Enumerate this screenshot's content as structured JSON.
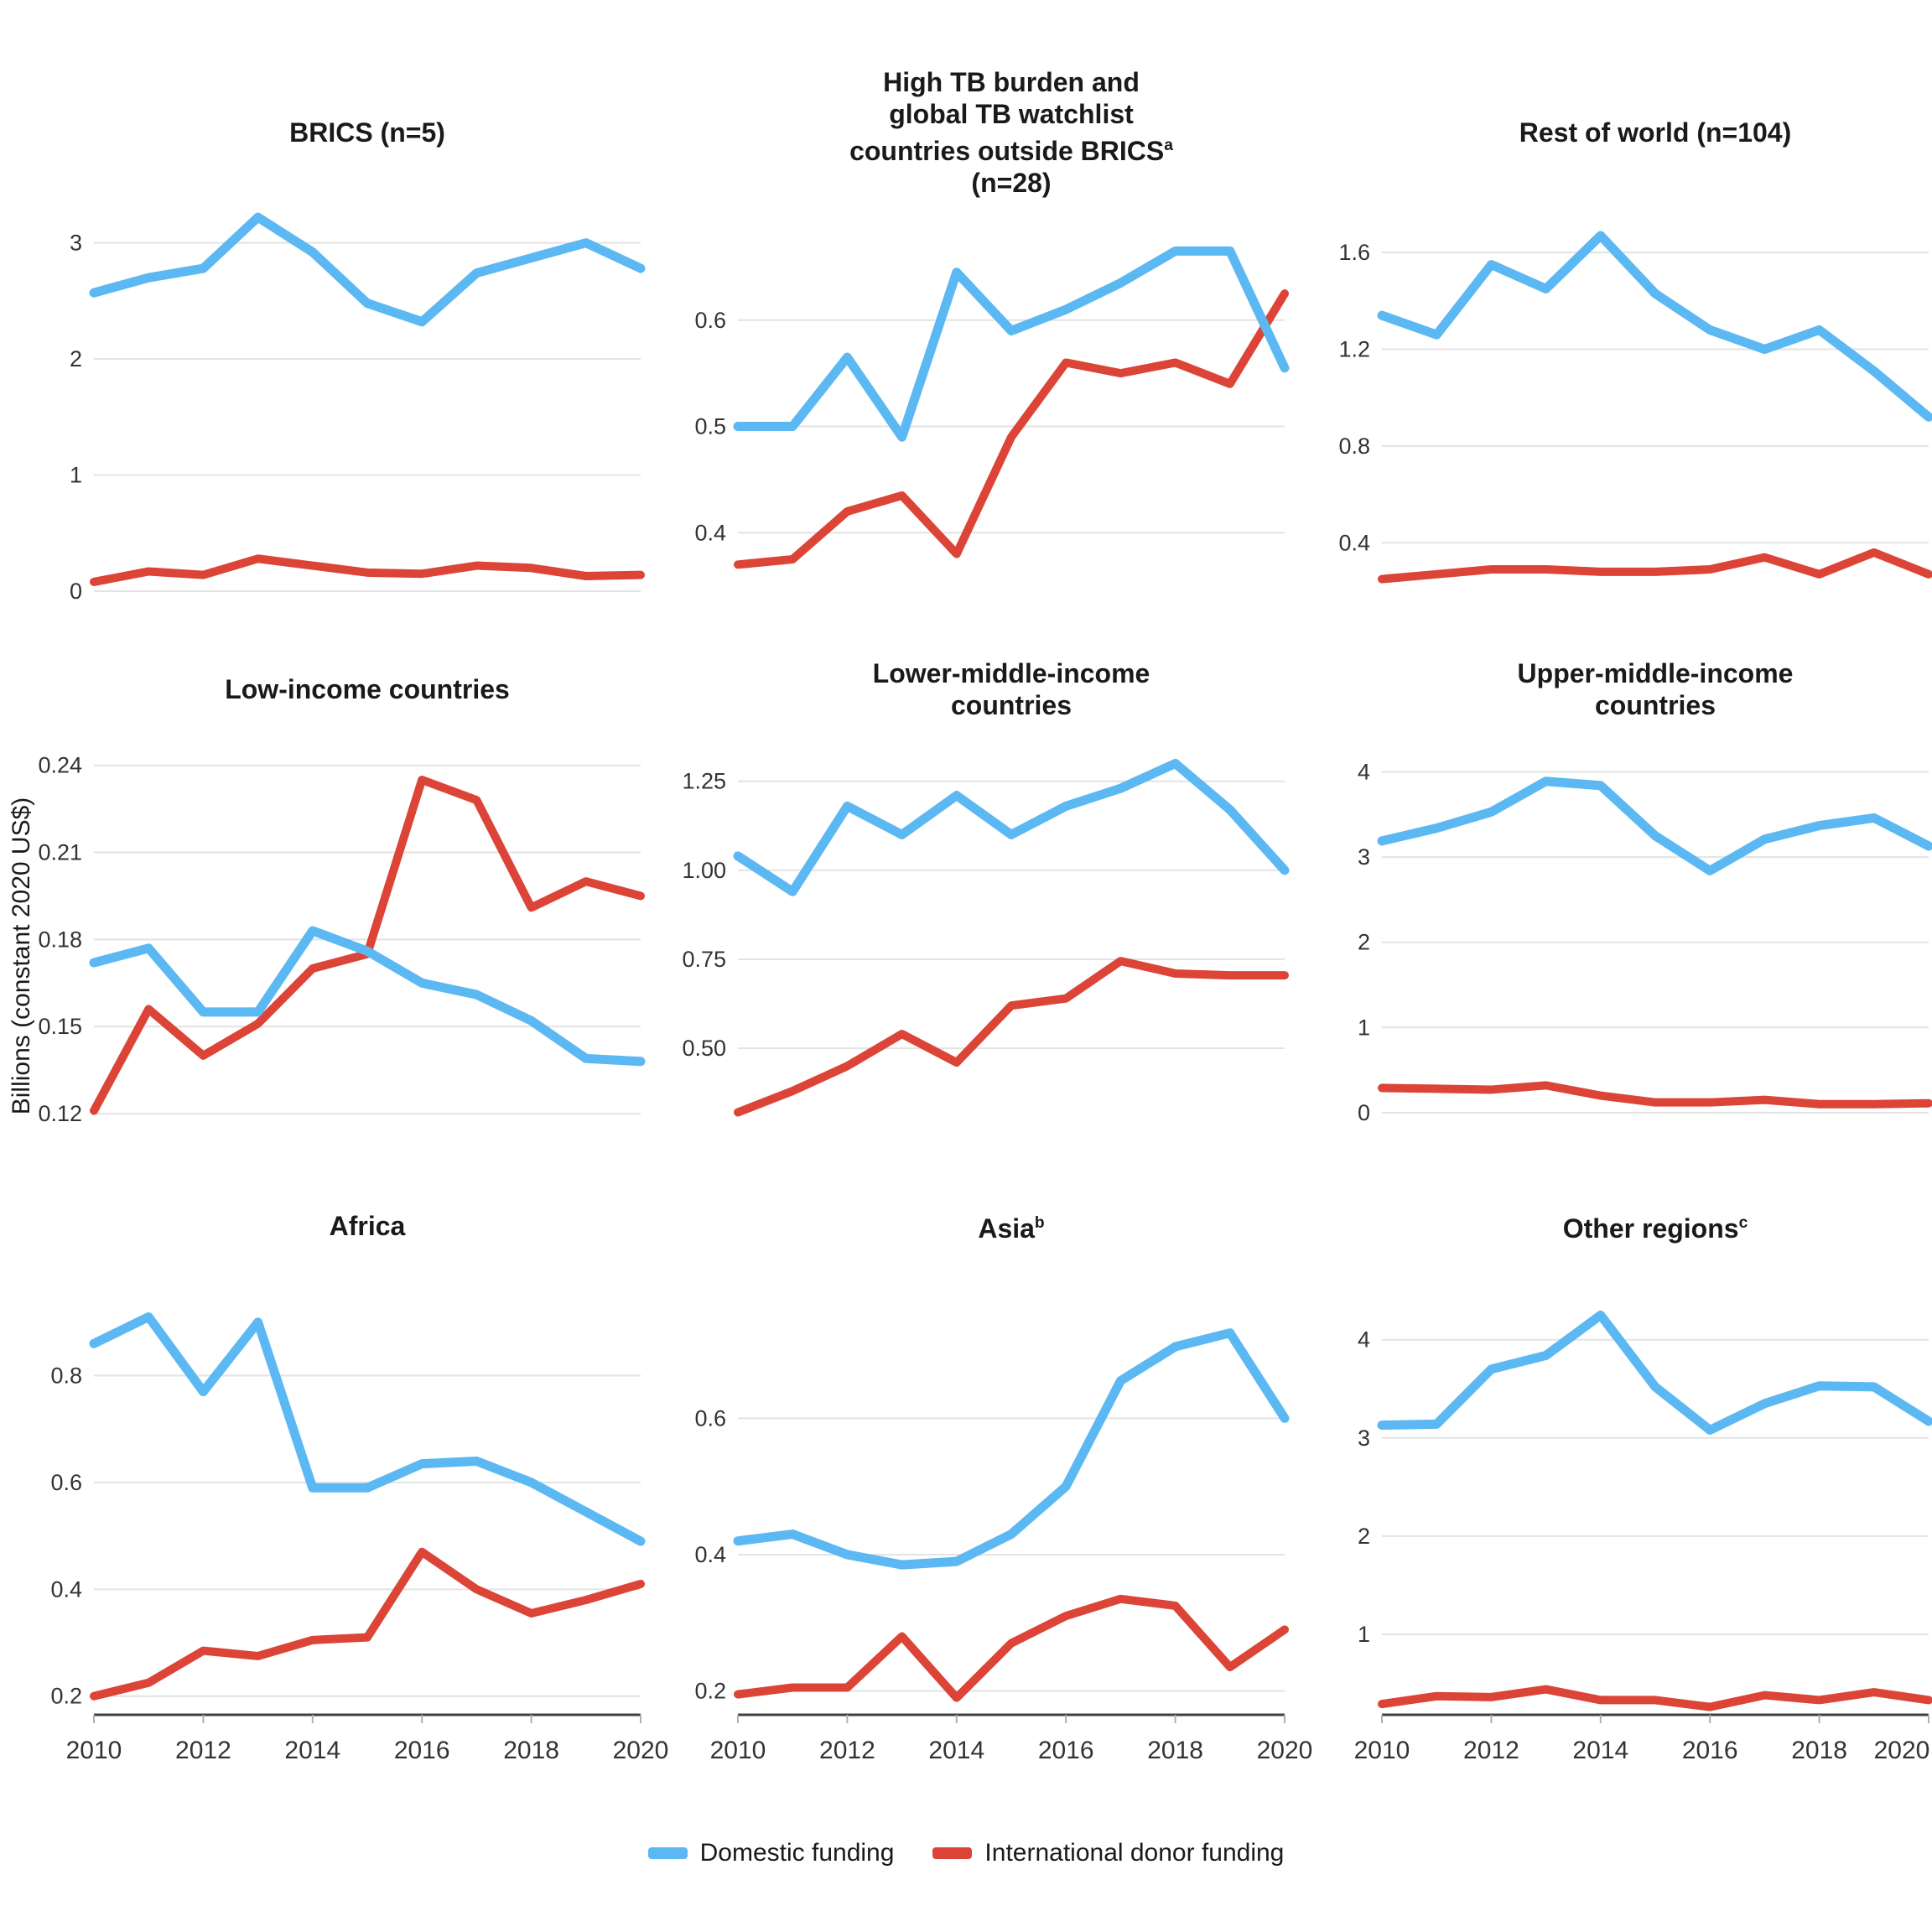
{
  "ylabel": "Billions (constant 2020 US$)",
  "legend": {
    "items": [
      {
        "id": "domestic",
        "label": "Domestic funding",
        "color": "#5CB8F2"
      },
      {
        "id": "donor",
        "label": "International donor funding",
        "color": "#DC4437"
      }
    ]
  },
  "colors": {
    "domestic_line": "#5CB8F2",
    "donor_line": "#DC4437",
    "gridline": "#E3E3E3",
    "axis_line": "#404040",
    "axis_tick": "#B0B0B0",
    "title_text": "#1A1A1A",
    "tick_text": "#333333"
  },
  "chart_data": {
    "type": "line",
    "x": [
      2010,
      2011,
      2012,
      2013,
      2014,
      2015,
      2016,
      2017,
      2018,
      2019,
      2020
    ],
    "xtick_labels": [
      "2010",
      "2012",
      "2014",
      "2016",
      "2018",
      "2020"
    ],
    "xtick_values": [
      2010,
      2012,
      2014,
      2016,
      2018,
      2020
    ],
    "series_names": [
      "Domestic funding",
      "International donor funding"
    ],
    "legend_position": "bottom",
    "grid": "horizontal-only",
    "panels": [
      {
        "id": "brics",
        "title_lines": [
          {
            "text": "BRICS (n=5)"
          }
        ],
        "ylim": [
          0,
          3.25
        ],
        "ytick_values": [
          0,
          1,
          2,
          3
        ],
        "ytick_labels": [
          "0",
          "1",
          "2",
          "3"
        ],
        "domestic": [
          2.57,
          2.7,
          2.78,
          3.22,
          2.92,
          2.48,
          2.32,
          2.74,
          2.87,
          3.0,
          2.78
        ],
        "donor": [
          0.08,
          0.17,
          0.14,
          0.28,
          0.22,
          0.16,
          0.15,
          0.22,
          0.2,
          0.13,
          0.14
        ]
      },
      {
        "id": "high-tb-watchlist",
        "title_lines": [
          {
            "text": "High TB burden and"
          },
          {
            "text": "global TB watchlist"
          },
          {
            "text": "countries outside BRICS",
            "sup": "a"
          },
          {
            "text": "(n=28)"
          }
        ],
        "ylim": [
          0.345,
          0.7
        ],
        "ytick_values": [
          0.4,
          0.5,
          0.6
        ],
        "ytick_labels": [
          "0.4",
          "0.5",
          "0.6"
        ],
        "domestic": [
          0.5,
          0.5,
          0.565,
          0.49,
          0.645,
          0.59,
          0.61,
          0.635,
          0.665,
          0.665,
          0.555
        ],
        "donor": [
          0.37,
          0.375,
          0.42,
          0.435,
          0.38,
          0.49,
          0.56,
          0.55,
          0.56,
          0.54,
          0.625
        ]
      },
      {
        "id": "rest-of-world",
        "title_lines": [
          {
            "text": "Rest of world (n=104)"
          }
        ],
        "ylim": [
          0.2,
          1.76
        ],
        "ytick_values": [
          0.4,
          0.8,
          1.2,
          1.6
        ],
        "ytick_labels": [
          "0.4",
          "0.8",
          "1.2",
          "1.6"
        ],
        "domestic": [
          1.34,
          1.26,
          1.55,
          1.45,
          1.67,
          1.43,
          1.28,
          1.2,
          1.28,
          1.11,
          0.92
        ],
        "donor": [
          0.25,
          0.27,
          0.29,
          0.29,
          0.28,
          0.28,
          0.29,
          0.34,
          0.27,
          0.36,
          0.27
        ]
      },
      {
        "id": "low-income",
        "title_lines": [
          {
            "text": "Low-income countries"
          }
        ],
        "ylim": [
          0.118,
          0.248
        ],
        "ytick_values": [
          0.12,
          0.15,
          0.18,
          0.21,
          0.24
        ],
        "ytick_labels": [
          "0.12",
          "0.15",
          "0.18",
          "0.21",
          "0.24"
        ],
        "domestic": [
          0.172,
          0.177,
          0.155,
          0.155,
          0.183,
          0.176,
          0.165,
          0.161,
          0.152,
          0.139,
          0.138
        ],
        "donor": [
          0.121,
          0.156,
          0.14,
          0.151,
          0.17,
          0.175,
          0.235,
          0.228,
          0.191,
          0.2,
          0.195
        ]
      },
      {
        "id": "lower-middle-income",
        "title_lines": [
          {
            "text": "Lower-middle-income"
          },
          {
            "text": "countries"
          }
        ],
        "ylim": [
          0.3,
          1.36
        ],
        "ytick_values": [
          0.5,
          0.75,
          1.0,
          1.25
        ],
        "ytick_labels": [
          "0.50",
          "0.75",
          "1.00",
          "1.25"
        ],
        "domestic": [
          1.04,
          0.94,
          1.18,
          1.1,
          1.21,
          1.1,
          1.18,
          1.23,
          1.3,
          1.17,
          1.0
        ],
        "donor": [
          0.32,
          0.38,
          0.45,
          0.54,
          0.46,
          0.62,
          0.64,
          0.745,
          0.71,
          0.705,
          0.705
        ]
      },
      {
        "id": "upper-middle-income",
        "title_lines": [
          {
            "text": "Upper-middle-income"
          },
          {
            "text": "countries"
          }
        ],
        "ylim": [
          -0.08,
          4.35
        ],
        "ytick_values": [
          0,
          1,
          2,
          3,
          4
        ],
        "ytick_labels": [
          "0",
          "1",
          "2",
          "3",
          "4"
        ],
        "domestic": [
          3.19,
          3.34,
          3.53,
          3.89,
          3.84,
          3.25,
          2.84,
          3.21,
          3.37,
          3.46,
          3.13
        ],
        "donor": [
          0.29,
          0.28,
          0.27,
          0.32,
          0.2,
          0.12,
          0.12,
          0.15,
          0.1,
          0.1,
          0.11
        ]
      },
      {
        "id": "africa",
        "title_lines": [
          {
            "text": "Africa"
          }
        ],
        "ylim": [
          0.165,
          0.95
        ],
        "ytick_values": [
          0.2,
          0.4,
          0.6,
          0.8
        ],
        "ytick_labels": [
          "0.2",
          "0.4",
          "0.6",
          "0.8"
        ],
        "domestic": [
          0.86,
          0.91,
          0.77,
          0.9,
          0.59,
          0.59,
          0.635,
          0.64,
          0.6,
          0.545,
          0.49
        ],
        "donor": [
          0.2,
          0.225,
          0.285,
          0.275,
          0.305,
          0.31,
          0.47,
          0.4,
          0.355,
          0.38,
          0.41
        ]
      },
      {
        "id": "asia",
        "title_lines": [
          {
            "text": "Asia",
            "sup": "b"
          }
        ],
        "ylim": [
          0.165,
          0.78
        ],
        "ytick_values": [
          0.2,
          0.4,
          0.6
        ],
        "ytick_labels": [
          "0.2",
          "0.4",
          "0.6"
        ],
        "domestic": [
          0.42,
          0.43,
          0.4,
          0.385,
          0.39,
          0.43,
          0.5,
          0.655,
          0.705,
          0.725,
          0.6
        ],
        "donor": [
          0.195,
          0.205,
          0.205,
          0.28,
          0.19,
          0.27,
          0.31,
          0.335,
          0.325,
          0.235,
          0.29
        ]
      },
      {
        "id": "other-regions",
        "title_lines": [
          {
            "text": "Other regions",
            "sup": "c"
          }
        ],
        "ylim": [
          0.18,
          4.45
        ],
        "ytick_values": [
          1,
          2,
          3,
          4
        ],
        "ytick_labels": [
          "1",
          "2",
          "3",
          "4"
        ],
        "domestic": [
          3.13,
          3.14,
          3.7,
          3.84,
          4.25,
          3.52,
          3.08,
          3.35,
          3.53,
          3.52,
          3.17
        ],
        "donor": [
          0.29,
          0.37,
          0.36,
          0.44,
          0.33,
          0.33,
          0.26,
          0.38,
          0.33,
          0.41,
          0.33
        ]
      }
    ]
  }
}
